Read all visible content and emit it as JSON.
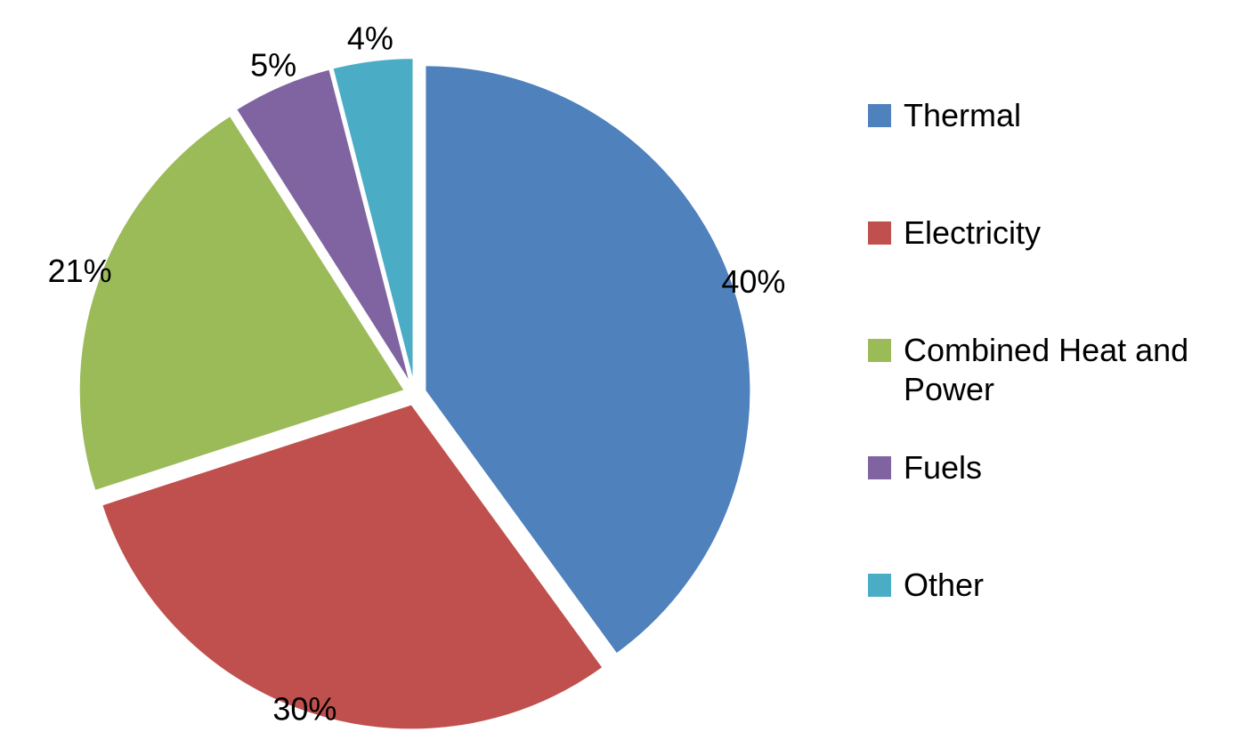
{
  "chart_data": {
    "type": "pie",
    "categories": [
      "Thermal",
      "Electricity",
      "Combined Heat and Power",
      "Fuels",
      "Other"
    ],
    "values": [
      40,
      30,
      21,
      5,
      4
    ],
    "value_labels": [
      "40%",
      "30%",
      "21%",
      "5%",
      "4%"
    ],
    "colors": [
      "#4f81bd",
      "#c0504d",
      "#9bbb59",
      "#8064a2",
      "#4bacc6"
    ],
    "legend": "right"
  }
}
